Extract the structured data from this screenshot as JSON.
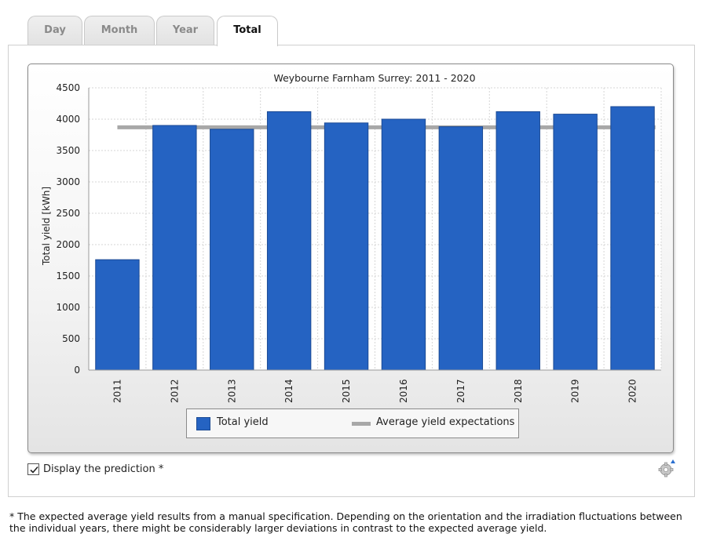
{
  "tabs": [
    {
      "label": "Day",
      "active": false
    },
    {
      "label": "Month",
      "active": false
    },
    {
      "label": "Year",
      "active": false
    },
    {
      "label": "Total",
      "active": true
    }
  ],
  "chart_data": {
    "type": "bar",
    "title": "Weybourne Farnham Surrey: 2011 - 2020",
    "xlabel": "",
    "ylabel": "Total yield [kWh]",
    "ylim": [
      0,
      4500
    ],
    "yticks": [
      0,
      500,
      1000,
      1500,
      2000,
      2500,
      3000,
      3500,
      4000,
      4500
    ],
    "categories": [
      "2011",
      "2012",
      "2013",
      "2014",
      "2015",
      "2016",
      "2017",
      "2018",
      "2019",
      "2020"
    ],
    "series": [
      {
        "name": "Total yield",
        "values": [
          1760,
          3900,
          3840,
          4120,
          3940,
          4000,
          3880,
          4120,
          4080,
          4200
        ],
        "color": "#2563c2"
      },
      {
        "name": "Average yield expectations",
        "type": "line",
        "value": 3870,
        "color": "#a8a8a8"
      }
    ],
    "grid": true,
    "legend_position": "bottom-center"
  },
  "legend": {
    "bar_label": "Total yield",
    "line_label": "Average yield expectations"
  },
  "prediction": {
    "label": "Display the prediction *",
    "checked": true
  },
  "footnote": "* The expected average yield results from a manual specification. Depending on the orientation and the irradiation fluctuations between the individual years, there might be considerably larger deviations in contrast to the expected average yield."
}
